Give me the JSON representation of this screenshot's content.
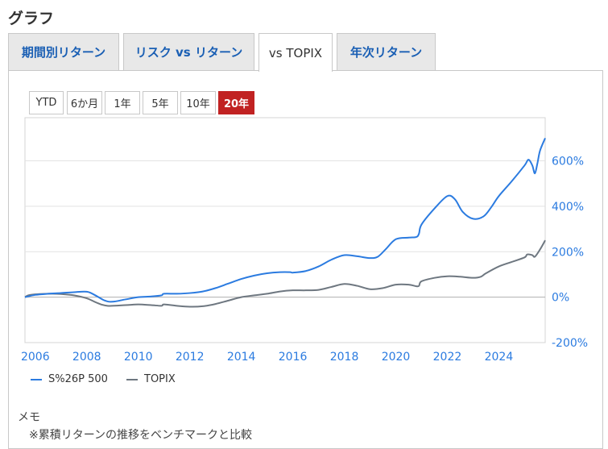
{
  "section_title": "グラフ",
  "tabs": [
    {
      "label": "期間別リターン",
      "active": false
    },
    {
      "label": "リスク vs リターン",
      "active": false
    },
    {
      "label": "vs TOPIX",
      "active": true
    },
    {
      "label": "年次リターン",
      "active": false
    }
  ],
  "periods": [
    {
      "label": "YTD",
      "active": false
    },
    {
      "label": "6か月",
      "active": false
    },
    {
      "label": "1年",
      "active": false
    },
    {
      "label": "5年",
      "active": false
    },
    {
      "label": "10年",
      "active": false
    },
    {
      "label": "20年",
      "active": true
    }
  ],
  "legend": [
    {
      "label": "S%26P 500",
      "color": "#2b7be0"
    },
    {
      "label": "TOPIX",
      "color": "#6e7780"
    }
  ],
  "memo": {
    "title": "メモ",
    "note": "※累積リターンの推移をベンチマークと比較"
  },
  "chart_data": {
    "type": "line",
    "xlim": [
      2005.6,
      2025.8
    ],
    "ylim": [
      -200,
      790
    ],
    "y_ticks": [
      -200,
      0,
      200,
      400,
      600
    ],
    "y_tick_labels": [
      "-200%",
      "0%",
      "200%",
      "400%",
      "600%"
    ],
    "x_ticks": [
      2006,
      2008,
      2010,
      2012,
      2014,
      2016,
      2018,
      2020,
      2022,
      2024
    ],
    "x_tick_labels": [
      "2006",
      "2008",
      "2010",
      "2012",
      "2014",
      "2016",
      "2018",
      "2020",
      "2022",
      "2024"
    ],
    "y_axis_side": "right",
    "tick_color": "#2b7be0",
    "grid": true,
    "series": [
      {
        "name": "S%26P 500",
        "color": "#2b7be0",
        "points": [
          [
            2005.6,
            0
          ],
          [
            2006.0,
            10
          ],
          [
            2006.5,
            15
          ],
          [
            2007.0,
            18
          ],
          [
            2007.5,
            22
          ],
          [
            2008.0,
            24
          ],
          [
            2008.3,
            10
          ],
          [
            2008.7,
            -15
          ],
          [
            2009.0,
            -20
          ],
          [
            2009.5,
            -10
          ],
          [
            2010.0,
            0
          ],
          [
            2010.5,
            3
          ],
          [
            2010.9,
            8
          ],
          [
            2011.0,
            15
          ],
          [
            2011.5,
            15
          ],
          [
            2012.0,
            18
          ],
          [
            2012.5,
            25
          ],
          [
            2013.0,
            40
          ],
          [
            2013.5,
            60
          ],
          [
            2014.0,
            80
          ],
          [
            2014.5,
            95
          ],
          [
            2015.0,
            105
          ],
          [
            2015.5,
            110
          ],
          [
            2015.9,
            110
          ],
          [
            2016.0,
            108
          ],
          [
            2016.5,
            115
          ],
          [
            2017.0,
            135
          ],
          [
            2017.5,
            165
          ],
          [
            2018.0,
            185
          ],
          [
            2018.5,
            180
          ],
          [
            2019.0,
            172
          ],
          [
            2019.3,
            178
          ],
          [
            2019.6,
            210
          ],
          [
            2020.0,
            255
          ],
          [
            2020.5,
            262
          ],
          [
            2020.8,
            265
          ],
          [
            2020.9,
            280
          ],
          [
            2021.0,
            320
          ],
          [
            2021.5,
            390
          ],
          [
            2022.0,
            445
          ],
          [
            2022.3,
            430
          ],
          [
            2022.6,
            375
          ],
          [
            2023.0,
            345
          ],
          [
            2023.4,
            355
          ],
          [
            2023.7,
            395
          ],
          [
            2024.0,
            445
          ],
          [
            2024.5,
            510
          ],
          [
            2025.0,
            580
          ],
          [
            2025.15,
            605
          ],
          [
            2025.3,
            580
          ],
          [
            2025.4,
            545
          ],
          [
            2025.5,
            590
          ],
          [
            2025.6,
            645
          ],
          [
            2025.8,
            700
          ]
        ]
      },
      {
        "name": "TOPIX",
        "color": "#6e7780",
        "points": [
          [
            2005.6,
            0
          ],
          [
            2005.8,
            10
          ],
          [
            2006.5,
            15
          ],
          [
            2007.0,
            14
          ],
          [
            2007.5,
            8
          ],
          [
            2008.0,
            -5
          ],
          [
            2008.4,
            -25
          ],
          [
            2008.8,
            -38
          ],
          [
            2009.5,
            -35
          ],
          [
            2010.0,
            -32
          ],
          [
            2010.5,
            -35
          ],
          [
            2010.9,
            -38
          ],
          [
            2011.0,
            -32
          ],
          [
            2011.5,
            -38
          ],
          [
            2012.0,
            -42
          ],
          [
            2012.5,
            -40
          ],
          [
            2013.0,
            -30
          ],
          [
            2013.5,
            -15
          ],
          [
            2014.0,
            0
          ],
          [
            2014.5,
            8
          ],
          [
            2015.0,
            15
          ],
          [
            2015.5,
            25
          ],
          [
            2016.0,
            30
          ],
          [
            2016.5,
            30
          ],
          [
            2017.0,
            32
          ],
          [
            2017.5,
            45
          ],
          [
            2018.0,
            58
          ],
          [
            2018.5,
            50
          ],
          [
            2019.0,
            35
          ],
          [
            2019.5,
            40
          ],
          [
            2020.0,
            55
          ],
          [
            2020.5,
            55
          ],
          [
            2020.8,
            48
          ],
          [
            2020.9,
            50
          ],
          [
            2021.0,
            70
          ],
          [
            2021.5,
            85
          ],
          [
            2022.0,
            92
          ],
          [
            2022.5,
            90
          ],
          [
            2023.0,
            85
          ],
          [
            2023.3,
            90
          ],
          [
            2023.5,
            105
          ],
          [
            2024.0,
            135
          ],
          [
            2024.5,
            155
          ],
          [
            2025.0,
            175
          ],
          [
            2025.1,
            188
          ],
          [
            2025.3,
            185
          ],
          [
            2025.4,
            178
          ],
          [
            2025.6,
            210
          ],
          [
            2025.8,
            250
          ]
        ]
      }
    ]
  }
}
